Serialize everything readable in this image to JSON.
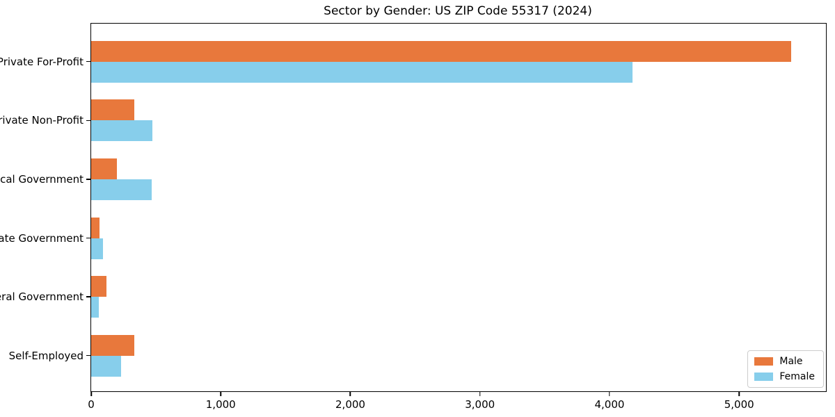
{
  "title": "Sector by Gender: US ZIP Code 55317 (2024)",
  "colors": {
    "male": "#E8783C",
    "female": "#87CEEB",
    "axis": "#000000",
    "legend_border": "#CCCCCC",
    "background": "#FFFFFF"
  },
  "legend": {
    "male_label": "Male",
    "female_label": "Female"
  },
  "chart_data": {
    "type": "bar",
    "orientation": "horizontal",
    "title": "Sector by Gender: US ZIP Code 55317 (2024)",
    "categories": [
      "Private For-Profit",
      "Private Non-Profit",
      "Local Government",
      "State Government",
      "Federal Government",
      "Self-Employed"
    ],
    "series": [
      {
        "name": "Male",
        "color": "#E8783C",
        "values": [
          5400,
          335,
          198,
          62,
          117,
          331
        ]
      },
      {
        "name": "Female",
        "color": "#87CEEB",
        "values": [
          4180,
          474,
          468,
          92,
          57,
          232
        ]
      }
    ],
    "xlabel": "",
    "ylabel": "",
    "xlim": [
      0,
      5670
    ],
    "x_ticks": [
      0,
      1000,
      2000,
      3000,
      4000,
      5000
    ],
    "x_tick_labels": [
      "0",
      "1,000",
      "2,000",
      "3,000",
      "4,000",
      "5,000"
    ],
    "legend_position": "lower right",
    "grid": false
  }
}
